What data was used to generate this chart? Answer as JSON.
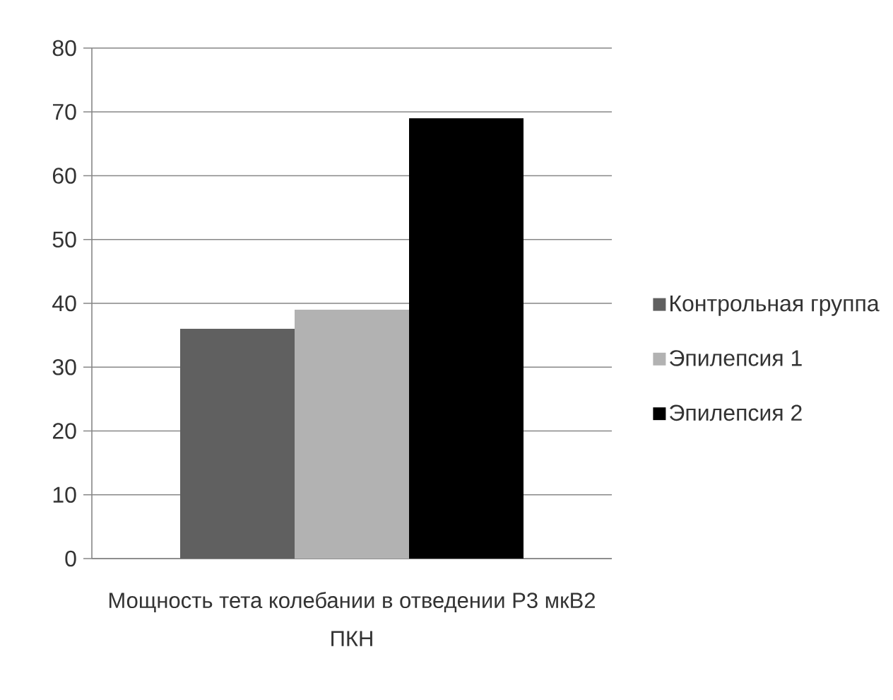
{
  "chart_data": {
    "type": "bar",
    "categories": [
      "Мощность тета колебании в отведении P3 мкВ2 ПКН"
    ],
    "series": [
      {
        "name": "Контрольная группа",
        "color": "#606060",
        "values": [
          36
        ]
      },
      {
        "name": "Эпилепсия 1",
        "color": "#b2b2b2",
        "values": [
          39
        ]
      },
      {
        "name": "Эпилепсия 2",
        "color": "#000000",
        "values": [
          69
        ]
      }
    ],
    "ylim": [
      0,
      80
    ],
    "yticks": [
      0,
      10,
      20,
      30,
      40,
      50,
      60,
      70,
      80
    ],
    "grid": "y",
    "legend": "right"
  }
}
